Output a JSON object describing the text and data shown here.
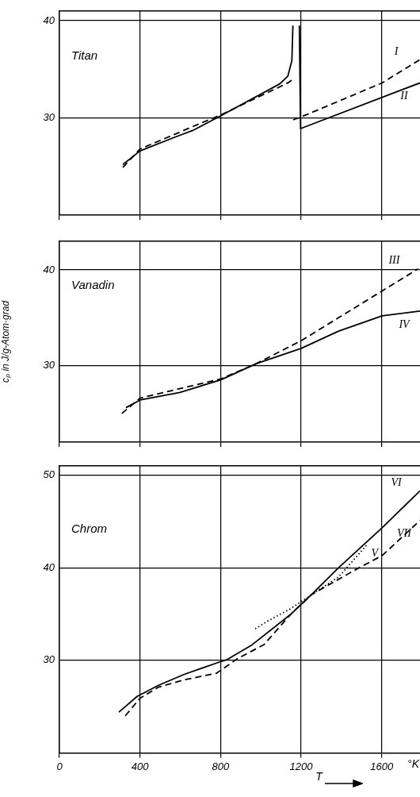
{
  "chart_data": [
    {
      "type": "line",
      "title": "Titan",
      "xlim": [
        0,
        1790
      ],
      "xticks": [
        0,
        400,
        800,
        1200,
        1600
      ],
      "ylim": [
        20,
        41
      ],
      "yticks": [
        30,
        40
      ],
      "grid": true,
      "legend": false,
      "marker": "none",
      "tick_labels": "y",
      "series": [
        {
          "name": "I",
          "color": "#000000",
          "line_style": "dashed",
          "x": [
            315,
            400,
            571,
            661,
            800,
            1094,
            1134,
            1154,
            1156,
            1160,
            1200,
            1602,
            1790
          ],
          "values": [
            24.9,
            26.8,
            28.3,
            29.1,
            30.3,
            33.2,
            33.6,
            33.9,
            null,
            29.8,
            30.1,
            33.6,
            36.0
          ]
        },
        {
          "name": "II",
          "color": "#000000",
          "line_style": "solid",
          "x": [
            315,
            400,
            571,
            661,
            800,
            1094,
            1134,
            1154,
            1159,
            1175,
            1191,
            1197,
            1790
          ],
          "values": [
            25.2,
            26.6,
            28.0,
            28.7,
            30.2,
            33.5,
            34.3,
            35.9,
            39.5,
            null,
            39.5,
            28.9,
            33.6
          ]
        }
      ]
    },
    {
      "type": "line",
      "title": "Vanadin",
      "ylabel": "cₚ in J/g-Atom·grad",
      "xlim": [
        0,
        1790
      ],
      "xticks": [
        0,
        400,
        800,
        1200,
        1600
      ],
      "ylim": [
        22,
        43
      ],
      "yticks": [
        30,
        40
      ],
      "grid": true,
      "legend": false,
      "marker": "none",
      "tick_labels": "y",
      "series": [
        {
          "name": "III",
          "color": "#000000",
          "line_style": "dashed",
          "x": [
            310,
            400,
            800,
            977,
            1200,
            1602,
            1780
          ],
          "values": [
            25.0,
            26.6,
            28.6,
            30.2,
            32.6,
            37.8,
            40.1
          ]
        },
        {
          "name": "IV",
          "color": "#000000",
          "line_style": "solid",
          "x": [
            330,
            400,
            598,
            800,
            977,
            1200,
            1386,
            1602,
            1790
          ],
          "values": [
            25.6,
            26.4,
            27.2,
            28.5,
            30.2,
            31.8,
            33.6,
            35.2,
            35.7
          ]
        }
      ]
    },
    {
      "type": "line",
      "title": "Chrom",
      "xlabel": "T",
      "annotations": [
        "°K"
      ],
      "xlim": [
        0,
        1790
      ],
      "xticks": [
        0,
        400,
        800,
        1200,
        1600
      ],
      "ylim": [
        20,
        51
      ],
      "yticks": [
        30,
        40,
        50
      ],
      "grid": true,
      "legend": false,
      "marker": "none",
      "series": [
        {
          "name": "V",
          "color": "#000000",
          "line_style": "dotted",
          "x": [
            972,
            1031,
            1150,
            1252,
            1386,
            1528
          ],
          "values": [
            33.4,
            34.2,
            35.6,
            37.1,
            39.0,
            42.5
          ]
        },
        {
          "name": "VI",
          "color": "#000000",
          "line_style": "solid",
          "x": [
            295,
            386,
            492,
            622,
            780,
            835,
            952,
            1150,
            1252,
            1386,
            1602,
            1790
          ],
          "values": [
            24.4,
            26.1,
            27.3,
            28.5,
            29.7,
            30.1,
            31.6,
            35.0,
            37.1,
            40.0,
            44.3,
            48.3
          ]
        },
        {
          "name": "VII",
          "color": "#000000",
          "line_style": "dashed",
          "x": [
            327,
            400,
            492,
            622,
            780,
            886,
            1016,
            1150,
            1252,
            1488,
            1602,
            1790
          ],
          "values": [
            24.0,
            25.9,
            27.1,
            27.9,
            28.6,
            30.2,
            31.7,
            35.0,
            37.1,
            40.0,
            41.3,
            45.1
          ]
        }
      ]
    }
  ]
}
